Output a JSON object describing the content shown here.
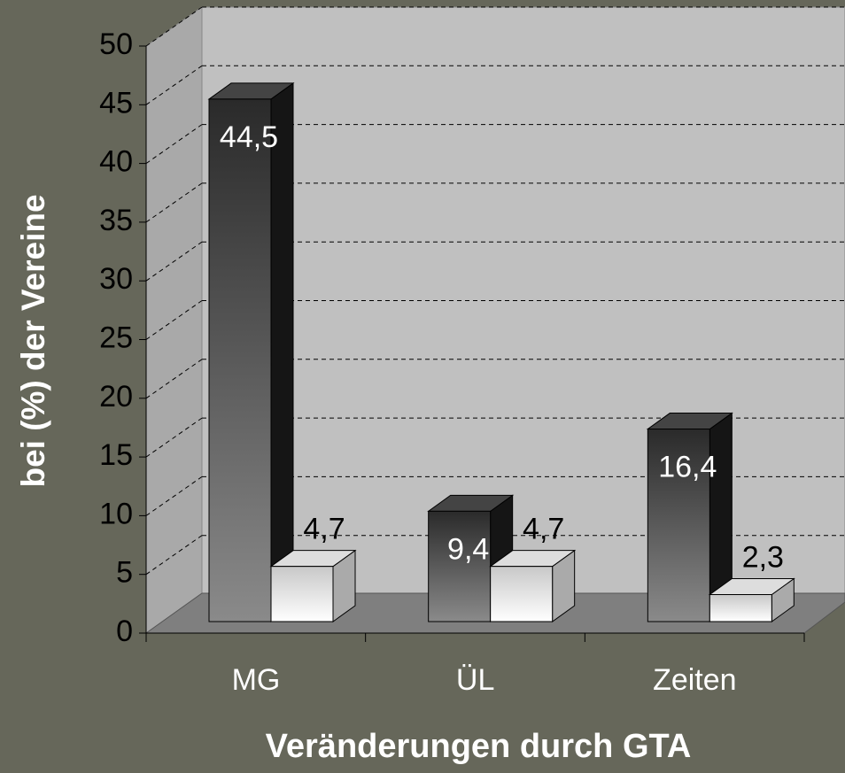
{
  "chart_data": {
    "type": "bar3d",
    "y_label": "bei (%) der Vereine",
    "x_label": "Veränderungen durch GTA",
    "categories": [
      "MG",
      "ÜL",
      "Zeiten"
    ],
    "series": [
      {
        "color": "#3a3a3a",
        "values": [
          44.5,
          9.4,
          16.4
        ],
        "value_labels": [
          "44,5",
          "9,4",
          "16,4"
        ]
      },
      {
        "color": "#ffffff",
        "values": [
          4.7,
          4.7,
          2.3
        ],
        "value_labels": [
          "4,7",
          "4,7",
          "2,3"
        ]
      }
    ],
    "ylim": [
      0,
      50
    ],
    "yticks": [
      0,
      5,
      10,
      15,
      20,
      25,
      30,
      35,
      40,
      45,
      50
    ],
    "grid": true
  }
}
